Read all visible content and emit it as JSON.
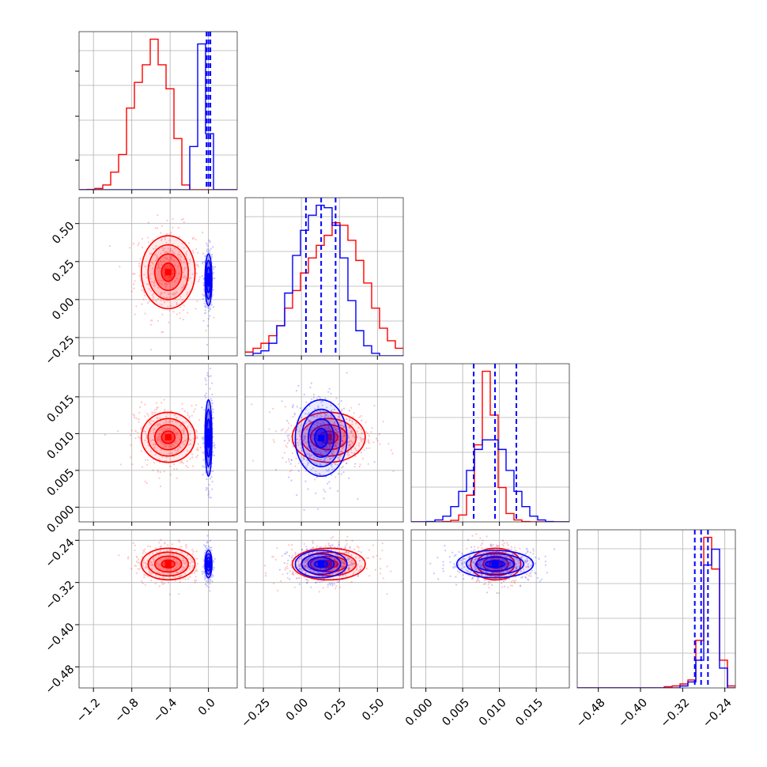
{
  "chart_data": {
    "type": "corner",
    "grid": true,
    "parameters": [
      {
        "range": [
          -1.35,
          0.3
        ],
        "ticks": [
          {
            "v": -1.2,
            "label": "−1.2"
          },
          {
            "v": -0.8,
            "label": "−0.8"
          },
          {
            "v": -0.4,
            "label": "−0.4"
          },
          {
            "v": 0.0,
            "label": "0.0"
          }
        ]
      },
      {
        "range": [
          -0.37,
          0.67
        ],
        "ticks": [
          {
            "v": -0.25,
            "label": "−0.25"
          },
          {
            "v": 0.0,
            "label": "0.00"
          },
          {
            "v": 0.25,
            "label": "0.25"
          },
          {
            "v": 0.5,
            "label": "0.50"
          }
        ]
      },
      {
        "range": [
          -0.002,
          0.0195
        ],
        "ticks": [
          {
            "v": 0.0,
            "label": "0.000"
          },
          {
            "v": 0.005,
            "label": "0.005"
          },
          {
            "v": 0.01,
            "label": "0.010"
          },
          {
            "v": 0.015,
            "label": "0.015"
          }
        ]
      },
      {
        "range": [
          -0.52,
          -0.22
        ],
        "ticks": [
          {
            "v": -0.48,
            "label": "−0.48"
          },
          {
            "v": -0.4,
            "label": "−0.40"
          },
          {
            "v": -0.32,
            "label": "−0.32"
          },
          {
            "v": -0.24,
            "label": "−0.24"
          }
        ]
      }
    ],
    "series": [
      {
        "color": "#ff0000",
        "means": [
          -0.42,
          0.18,
          0.0095,
          -0.285
        ],
        "sds": [
          0.14,
          0.12,
          0.0017,
          0.015
        ],
        "hist_ymax": [
          0.0001,
          6.0,
          430,
          45
        ],
        "hists": [
          [
            0,
            0.2,
            0.8,
            3,
            11,
            22,
            51,
            67,
            78,
            94,
            78,
            63,
            32,
            3,
            0,
            0,
            0,
            0,
            0,
            0
          ],
          [
            0.15,
            0.3,
            0.5,
            0.8,
            1.2,
            1.9,
            2.6,
            3.3,
            3.9,
            4.4,
            4.8,
            5.3,
            5.2,
            4.6,
            3.8,
            2.9,
            1.9,
            1.1,
            0.6,
            0.3
          ],
          [
            0,
            0,
            0,
            0,
            1,
            4,
            18,
            70,
            202,
            395,
            280,
            90,
            22,
            5,
            1,
            0,
            0,
            0,
            0,
            0
          ],
          [
            0,
            0,
            0,
            0,
            0,
            0,
            0,
            0,
            0,
            0,
            0,
            0.3,
            0.5,
            1,
            2,
            12,
            38,
            30,
            7,
            0.5
          ]
        ]
      },
      {
        "color": "#0000ff",
        "means": [
          0.0,
          0.13,
          0.0094,
          -0.285
        ],
        "sds": [
          0.018,
          0.085,
          0.0026,
          0.013
        ],
        "hist_ymax": [
          0.0001,
          6.0,
          430,
          45
        ],
        "hists": [
          [
            0,
            0,
            0,
            0,
            0,
            0,
            0,
            0,
            0,
            0,
            0,
            0,
            0,
            0,
            27,
            91,
            35,
            0,
            0,
            0
          ],
          [
            0,
            0.1,
            0.2,
            0.5,
            1.2,
            2.5,
            4.0,
            5.0,
            5.6,
            6.0,
            5.9,
            5.2,
            3.9,
            2.2,
            1.0,
            0.4,
            0.1,
            0,
            0,
            0
          ],
          [
            0,
            0,
            1,
            5,
            15,
            40,
            80,
            135,
            190,
            215,
            215,
            190,
            135,
            80,
            40,
            15,
            5,
            1,
            0,
            0
          ],
          [
            0,
            0,
            0,
            0,
            0,
            0,
            0,
            0,
            0,
            0,
            0,
            0,
            0,
            0.5,
            1.5,
            7,
            31,
            35,
            5,
            0
          ]
        ],
        "quantile_lines": [
          [
            -0.02,
            0.0,
            0.02
          ],
          [
            0.03,
            0.13,
            0.225
          ],
          [
            0.0065,
            0.0094,
            0.0123
          ],
          [
            -0.297,
            -0.285,
            -0.272
          ]
        ]
      }
    ]
  }
}
